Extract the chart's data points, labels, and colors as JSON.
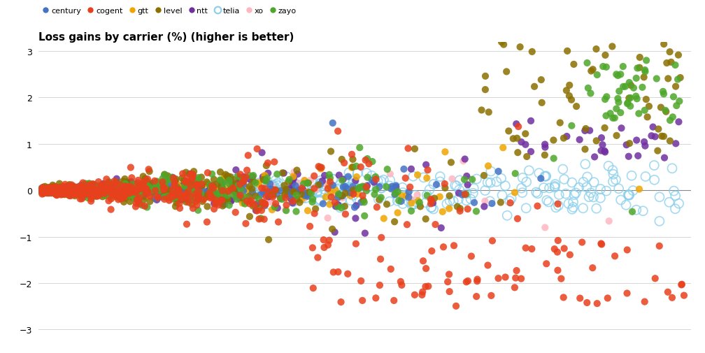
{
  "title": "Loss gains by carrier (%) (higher is better)",
  "carriers": [
    "century",
    "cogent",
    "gtt",
    "level",
    "ntt",
    "telia",
    "xo",
    "zayo"
  ],
  "colors": {
    "century": "#4472C4",
    "cogent": "#E8401C",
    "gtt": "#F0A500",
    "level": "#8B7000",
    "ntt": "#7030A0",
    "telia": "#87CEEB",
    "xo": "#FFB6C1",
    "zayo": "#4EA72A"
  },
  "ylim": [
    -3.2,
    3.2
  ],
  "yticks": [
    -3,
    -2,
    -1,
    0,
    1,
    2,
    3
  ],
  "background_color": "#ffffff",
  "grid_color": "#d0d0d0",
  "marker_size": 7,
  "alpha": 0.85
}
